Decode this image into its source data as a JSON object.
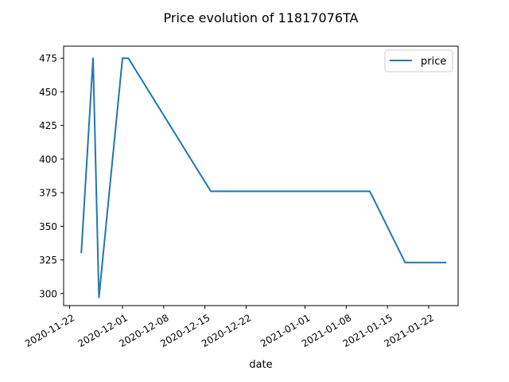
{
  "chart_data": {
    "type": "line",
    "title": "Price evolution of 11817076TA",
    "xlabel": "date",
    "ylabel": "",
    "x_axis_type": "date",
    "xlim": [
      "2020-11-21",
      "2021-01-27"
    ],
    "ylim": [
      291,
      484
    ],
    "x_ticks": [
      "2020-11-22",
      "2020-12-01",
      "2020-12-08",
      "2020-12-15",
      "2020-12-22",
      "2021-01-01",
      "2021-01-08",
      "2021-01-15",
      "2021-01-22"
    ],
    "y_ticks": [
      300,
      325,
      350,
      375,
      400,
      425,
      450,
      475
    ],
    "grid": false,
    "legend": {
      "position": "top-right",
      "entries": [
        "price"
      ]
    },
    "series": [
      {
        "name": "price",
        "color": "#1f77b4",
        "points": [
          {
            "x": "2020-11-24",
            "y": 330
          },
          {
            "x": "2020-11-26",
            "y": 475
          },
          {
            "x": "2020-11-27",
            "y": 297
          },
          {
            "x": "2020-12-01",
            "y": 475
          },
          {
            "x": "2020-12-02",
            "y": 475
          },
          {
            "x": "2020-12-16",
            "y": 376
          },
          {
            "x": "2021-01-12",
            "y": 376
          },
          {
            "x": "2021-01-18",
            "y": 323
          },
          {
            "x": "2021-01-25",
            "y": 323
          }
        ]
      }
    ]
  }
}
